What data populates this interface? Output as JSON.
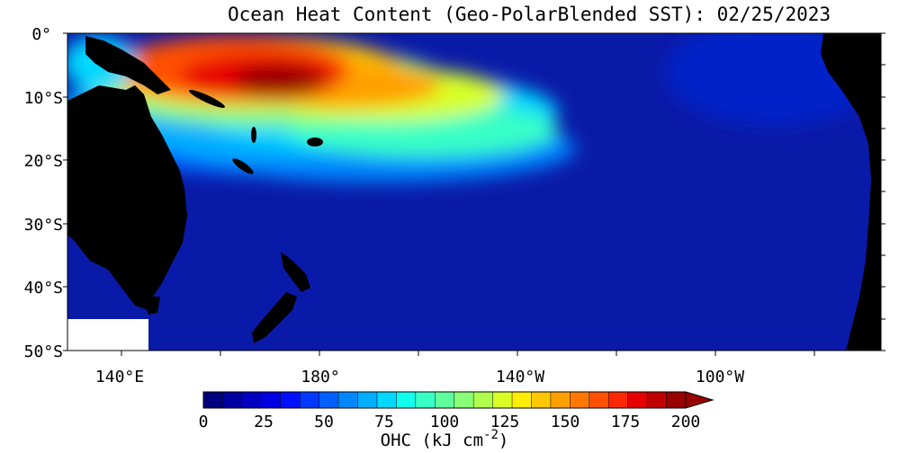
{
  "title": "Ocean Heat Content (Geo-PolarBlended SST): 02/25/2023",
  "map": {
    "lat_labels": [
      "0°",
      "10°S",
      "20°S",
      "30°S",
      "40°S",
      "50°S"
    ],
    "lon_labels": [
      "140°E",
      "180°",
      "140°W",
      "100°W"
    ],
    "land_color": "#000000",
    "ocean_base_color": "#0a1aa8"
  },
  "colorbar": {
    "tick_labels": [
      "0",
      "25",
      "50",
      "75",
      "100",
      "125",
      "150",
      "175",
      "200"
    ],
    "label": "OHC (kJ cm",
    "label_exponent": "-2",
    "label_close": ")",
    "colors": [
      "#00007f",
      "#0000a0",
      "#0000c2",
      "#0000e2",
      "#0010ff",
      "#0038ff",
      "#0060ff",
      "#0088ff",
      "#00b0ff",
      "#00d8ff",
      "#10ffee",
      "#38ffc6",
      "#60ff9e",
      "#88ff76",
      "#b0ff4e",
      "#d8ff26",
      "#ffee00",
      "#ffc800",
      "#ffa000",
      "#ff7800",
      "#ff5000",
      "#ff2800",
      "#e80000",
      "#c00000",
      "#980000"
    ]
  }
}
